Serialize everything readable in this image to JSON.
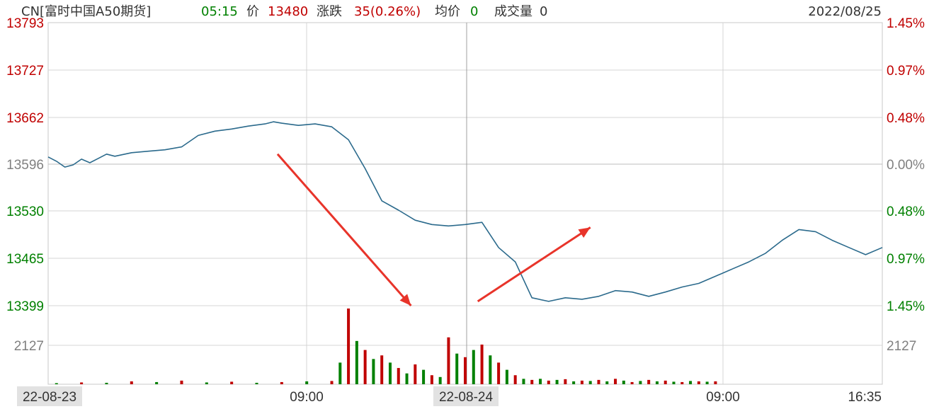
{
  "header": {
    "symbol": "CN[富时中国A50期货]",
    "time": "05:15",
    "price_label": "价",
    "price_value": "13480",
    "change_label": "涨跌",
    "change_value": "35(0.26%)",
    "avg_label": "均价",
    "avg_value": "0",
    "volume_label": "成交量",
    "volume_value": "0",
    "date": "2022/08/25"
  },
  "colors": {
    "up": "#c00000",
    "down": "#008000",
    "neutral": "#808080",
    "price_line": "#2b6a8c",
    "arrow": "#e8342a",
    "grid": "#d4d4d4"
  },
  "chart_data": {
    "type": "line",
    "title": "CN[富时中国A50期货]",
    "xlabel": "",
    "ylabel": "",
    "x_ticks": [
      "22-08-23",
      "09:00",
      "22-08-24",
      "09:00",
      "16:35"
    ],
    "y_ticks_left": [
      "13793",
      "13727",
      "13662",
      "13596",
      "13530",
      "13465",
      "13399"
    ],
    "y_ticks_right": [
      "1.45%",
      "0.97%",
      "0.48%",
      "0.00%",
      "0.48%",
      "0.97%",
      "1.45%"
    ],
    "ylim": [
      13399,
      13793
    ],
    "reference_price": 13596,
    "volume_tick": "2127",
    "x_range": [
      0,
      100
    ],
    "grid": true,
    "series": [
      {
        "x": [
          0,
          1,
          2,
          3,
          4,
          5,
          6,
          7,
          8,
          10,
          12,
          14,
          16,
          18,
          20,
          22,
          24,
          26,
          27,
          28,
          30,
          32,
          34,
          36,
          38,
          40,
          42,
          44,
          46,
          48,
          50,
          52,
          54,
          56,
          58,
          60,
          62,
          64,
          66,
          68,
          70,
          72,
          74,
          76,
          78,
          80,
          82,
          84,
          86,
          88,
          90,
          92,
          94,
          96,
          98,
          100
        ],
        "values": [
          13606,
          13600,
          13592,
          13595,
          13603,
          13598,
          13604,
          13610,
          13607,
          13612,
          13614,
          13616,
          13620,
          13636,
          13642,
          13645,
          13649,
          13652,
          13655,
          13653,
          13650,
          13652,
          13648,
          13630,
          13590,
          13545,
          13532,
          13518,
          13512,
          13510,
          13512,
          13515,
          13480,
          13460,
          13410,
          13405,
          13410,
          13408,
          13412,
          13420,
          13418,
          13412,
          13418,
          13425,
          13430,
          13440,
          13450,
          13460,
          13472,
          13490,
          13505,
          13502,
          13490,
          13480,
          13470,
          13480
        ]
      }
    ],
    "volume": {
      "x": [
        1,
        4,
        7,
        10,
        13,
        16,
        19,
        22,
        25,
        28,
        31,
        34,
        35,
        36,
        37,
        38,
        39,
        40,
        41,
        42,
        43,
        44,
        45,
        46,
        47,
        48,
        49,
        50,
        51,
        52,
        53,
        54,
        55,
        56,
        57,
        58,
        59,
        60,
        61,
        62,
        63,
        64,
        65,
        66,
        67,
        68,
        69,
        70,
        71,
        72,
        73,
        74,
        75,
        76,
        77,
        78,
        79,
        80
      ],
      "values": [
        3,
        5,
        4,
        8,
        6,
        10,
        5,
        7,
        4,
        6,
        8,
        9,
        60,
        210,
        120,
        95,
        70,
        80,
        60,
        45,
        30,
        55,
        40,
        25,
        20,
        130,
        85,
        75,
        95,
        110,
        80,
        60,
        40,
        25,
        15,
        12,
        15,
        10,
        12,
        14,
        8,
        10,
        9,
        12,
        8,
        15,
        10,
        6,
        9,
        12,
        8,
        10,
        7,
        6,
        9,
        8,
        7,
        8
      ],
      "colors": [
        "down",
        "up",
        "down",
        "up",
        "down",
        "up",
        "down",
        "up",
        "down",
        "up",
        "down",
        "up",
        "down",
        "up",
        "down",
        "up",
        "down",
        "up",
        "down",
        "up",
        "down",
        "up",
        "down",
        "up",
        "down",
        "up",
        "down",
        "up",
        "down",
        "up",
        "down",
        "up",
        "down",
        "up",
        "down",
        "up",
        "down",
        "up",
        "down",
        "up",
        "down",
        "up",
        "down",
        "up",
        "down",
        "up",
        "down",
        "up",
        "down",
        "up",
        "down",
        "up",
        "down",
        "up",
        "down",
        "up",
        "down",
        "up"
      ]
    },
    "annotations": [
      {
        "type": "arrow",
        "from": {
          "x": 27.5,
          "y": 13610
        },
        "to": {
          "x": 43.5,
          "y": 13399
        }
      },
      {
        "type": "arrow",
        "from": {
          "x": 51.5,
          "y": 13405
        },
        "to": {
          "x": 65,
          "y": 13508
        }
      }
    ]
  }
}
